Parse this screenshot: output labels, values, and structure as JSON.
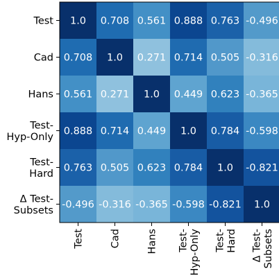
{
  "chart_data": {
    "type": "heatmap",
    "title": "",
    "xlabel": "",
    "ylabel": "",
    "row_labels": [
      [
        "Test"
      ],
      [
        "Cad"
      ],
      [
        "Hans"
      ],
      [
        "Test-",
        "Hyp-Only"
      ],
      [
        "Test-",
        "Hard"
      ],
      [
        "Δ Test-",
        "Subsets"
      ]
    ],
    "col_labels": [
      [
        "Test"
      ],
      [
        "Cad"
      ],
      [
        "Hans"
      ],
      [
        "Test-",
        "Hyp-Only"
      ],
      [
        "Test-",
        "Hard"
      ],
      [
        "Δ Test-",
        "Subsets"
      ]
    ],
    "values": [
      [
        1.0,
        0.708,
        0.561,
        0.888,
        0.763,
        -0.496
      ],
      [
        0.708,
        1.0,
        0.271,
        0.714,
        0.505,
        -0.316
      ],
      [
        0.561,
        0.271,
        1.0,
        0.449,
        0.623,
        -0.365
      ],
      [
        0.888,
        0.714,
        0.449,
        1.0,
        0.784,
        -0.598
      ],
      [
        0.763,
        0.505,
        0.623,
        0.784,
        1.0,
        -0.821
      ],
      [
        -0.496,
        -0.316,
        -0.365,
        -0.598,
        -0.821,
        1.0
      ]
    ],
    "value_labels": [
      [
        "1.0",
        "0.708",
        "0.561",
        "0.888",
        "0.763",
        "-0.496"
      ],
      [
        "0.708",
        "1.0",
        "0.271",
        "0.714",
        "0.505",
        "-0.316"
      ],
      [
        "0.561",
        "0.271",
        "1.0",
        "0.449",
        "0.623",
        "-0.365"
      ],
      [
        "0.888",
        "0.714",
        "0.449",
        "1.0",
        "0.784",
        "-0.598"
      ],
      [
        "0.763",
        "0.505",
        "0.623",
        "0.784",
        "1.0",
        "-0.821"
      ],
      [
        "-0.496",
        "-0.316",
        "-0.365",
        "-0.598",
        "-0.821",
        "1.0"
      ]
    ],
    "color_scale": {
      "scale_by": "absolute value",
      "stops": [
        [
          0.27,
          "#8fc1de"
        ],
        [
          0.36,
          "#7ab6d9"
        ],
        [
          0.45,
          "#5fa4d0"
        ],
        [
          0.5,
          "#5299ca"
        ],
        [
          0.56,
          "#4390c6"
        ],
        [
          0.6,
          "#3b88c2"
        ],
        [
          0.62,
          "#3282bd"
        ],
        [
          0.71,
          "#1f6cb1"
        ],
        [
          0.76,
          "#1b62aa"
        ],
        [
          0.78,
          "#185da6"
        ],
        [
          0.82,
          "#13539e"
        ],
        [
          0.89,
          "#0b4690"
        ],
        [
          1.0,
          "#08306b"
        ]
      ]
    },
    "grid": false,
    "colorbar": false
  }
}
